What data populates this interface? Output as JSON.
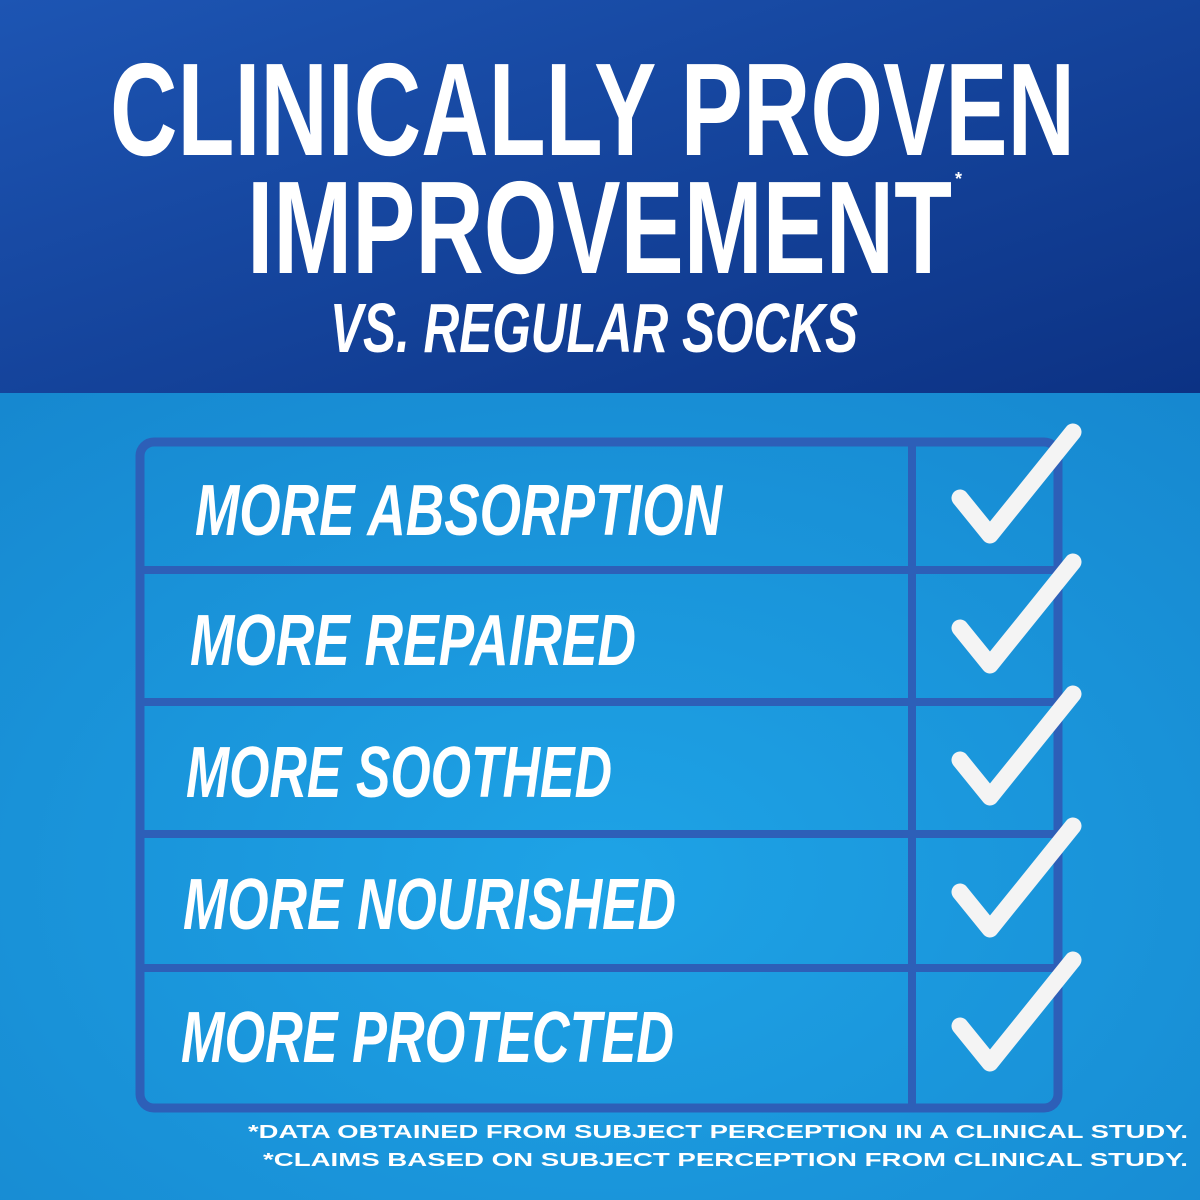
{
  "header": {
    "title_lines": [
      "CLINICALLY PROVEN",
      "IMPROVEMENT"
    ],
    "title_mark": "*",
    "subtitle": "VS. REGULAR SOCKS"
  },
  "table": {
    "rows": [
      "MORE ABSORPTION",
      "MORE REPAIRED",
      "MORE SOOTHED",
      "MORE NOURISHED",
      "MORE PROTECTED"
    ]
  },
  "footnotes": [
    "*DATA OBTAINED FROM SUBJECT PERCEPTION IN A CLINICAL STUDY.",
    "*CLAIMS BASED ON SUBJECT PERCEPTION FROM CLINICAL STUDY."
  ]
}
